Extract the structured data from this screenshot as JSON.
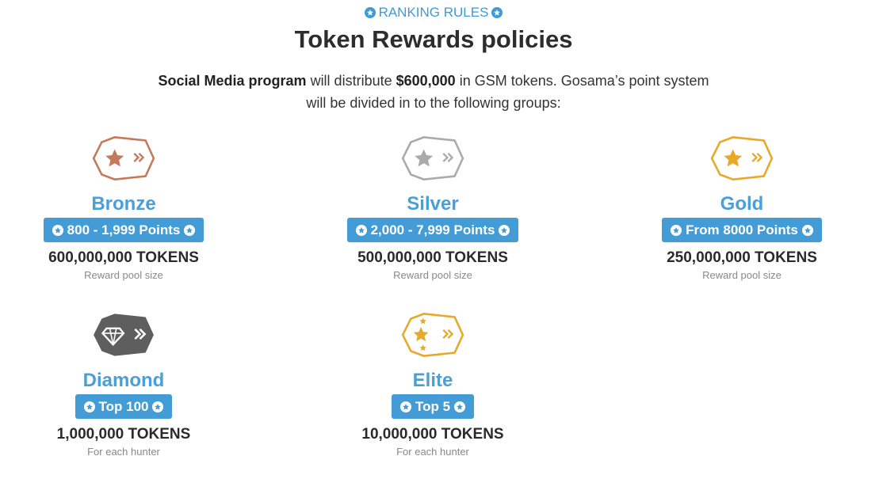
{
  "header": {
    "kicker": "RANKING RULES",
    "title": "Token Rewards policies",
    "intro_bold1": "Social Media program",
    "intro_t1": " will distribute ",
    "intro_bold2": "$600,000",
    "intro_t2": " in GSM tokens. Gosama’s point system will be divided in to the following groups:"
  },
  "colors": {
    "accent": "#439cd6",
    "bronze": "#c47a5a",
    "silver": "#aaaaaa",
    "gold": "#e8a82a",
    "diamond": "#5e5e5e"
  },
  "tiers": [
    {
      "name": "Bronze",
      "range": "800 - 1,999 Points",
      "tokens": "600,000,000 TOKENS",
      "note": "Reward pool size",
      "icon": "bronze-star-badge"
    },
    {
      "name": "Silver",
      "range": "2,000 - 7,999 Points",
      "tokens": "500,000,000 TOKENS",
      "note": "Reward pool size",
      "icon": "silver-star-badge"
    },
    {
      "name": "Gold",
      "range": "From 8000 Points",
      "tokens": "250,000,000 TOKENS",
      "note": "Reward pool size",
      "icon": "gold-star-badge"
    },
    {
      "name": "Diamond",
      "range": "Top 100",
      "tokens": "1,000,000 TOKENS",
      "note": "For each hunter",
      "icon": "diamond-badge"
    },
    {
      "name": "Elite",
      "range": "Top 5",
      "tokens": "10,000,000 TOKENS",
      "note": "For each hunter",
      "icon": "elite-stars-badge"
    }
  ]
}
